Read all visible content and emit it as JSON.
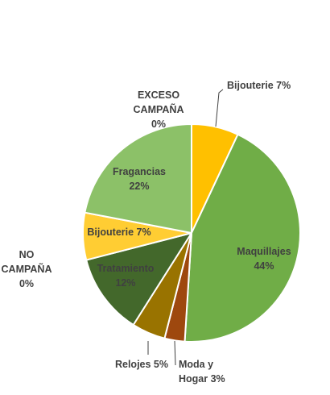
{
  "chart_data": {
    "type": "pie",
    "title": "",
    "slices": [
      {
        "label": "Bijouterie",
        "value": 7,
        "value_label": "7%",
        "color": "#FFC000",
        "label_lines": [
          "Bijouterie 7%"
        ]
      },
      {
        "label": "Maquillajes",
        "value": 44,
        "value_label": "44%",
        "color": "#70AD47",
        "label_lines": [
          "Maquillajes",
          "44%"
        ]
      },
      {
        "label": "Moda y Hogar",
        "value": 3,
        "value_label": "3%",
        "color": "#9E480E",
        "label_lines": [
          "Moda y",
          "Hogar 3%"
        ]
      },
      {
        "label": "Relojes",
        "value": 5,
        "value_label": "5%",
        "color": "#997300",
        "label_lines": [
          "Relojes 5%"
        ]
      },
      {
        "label": "Tratamiento",
        "value": 12,
        "value_label": "12%",
        "color": "#43682B",
        "label_lines": [
          "Tratamiento",
          "12%"
        ]
      },
      {
        "label": "Bijouterie",
        "value": 7,
        "value_label": "7%",
        "color": "#FFCD33",
        "label_lines": [
          "Bijouterie 7%"
        ]
      },
      {
        "label": "NO CAMPAÑA",
        "value": 0,
        "value_label": "0%",
        "color": "#8FAADC",
        "label_lines": [
          "NO",
          "CAMPAÑA",
          "0%"
        ]
      },
      {
        "label": "Fragancias",
        "value": 22,
        "value_label": "22%",
        "color": "#8CC168",
        "label_lines": [
          "Fragancias",
          "22%"
        ]
      },
      {
        "label": "EXCESO CAMPAÑA",
        "value": 0,
        "value_label": "0%",
        "color": "#F4B183",
        "label_lines": [
          "EXCESO",
          "CAMPAÑA",
          "0%"
        ]
      }
    ],
    "legend": "none",
    "start_angle": "12 o'clock",
    "direction": "clockwise"
  }
}
